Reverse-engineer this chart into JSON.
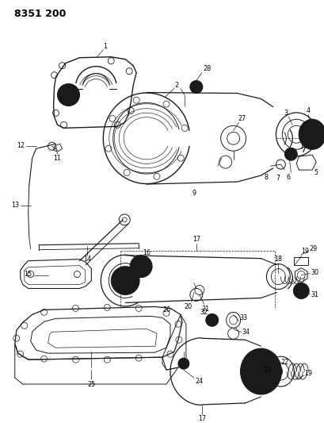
{
  "title": "8351 200",
  "background_color": "#ffffff",
  "line_color": "#1a1a1a",
  "fig_width": 4.1,
  "fig_height": 5.33,
  "dpi": 100
}
